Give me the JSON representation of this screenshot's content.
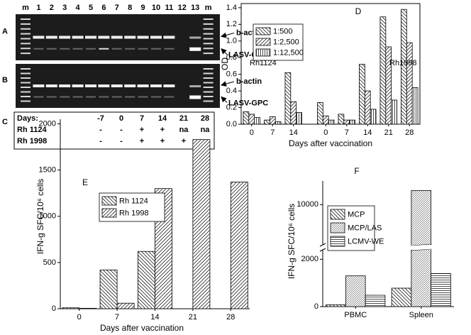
{
  "gels": {
    "lanes": [
      "m",
      "1",
      "2",
      "3",
      "4",
      "5",
      "6",
      "7",
      "8",
      "9",
      "10",
      "11",
      "12",
      "13",
      "m"
    ],
    "panels": [
      {
        "label": "A",
        "markers": [
          "b-actin",
          "LASV-GPC"
        ]
      },
      {
        "label": "B",
        "markers": [
          "b-actin",
          "LASV-GPC"
        ]
      }
    ]
  },
  "table": {
    "label": "C",
    "header": [
      "Days:",
      "-7",
      "0",
      "7",
      "14",
      "21",
      "28"
    ],
    "rows": [
      [
        "Rh 1124",
        "-",
        "-",
        "+",
        "+",
        "na",
        "na"
      ],
      [
        "Rh 1998",
        "-",
        "-",
        "+",
        "+",
        "+",
        "-"
      ]
    ]
  },
  "chart_data": [
    {
      "type": "bar",
      "panel_label": "D",
      "y_label": "OD",
      "x_label": "Days after vaccination",
      "categories": [
        "0",
        "7",
        "14",
        "0",
        "7",
        "14",
        "21",
        "28"
      ],
      "annotations": [
        "Rh1124",
        "Rh1998"
      ],
      "series": [
        {
          "name": "1:500",
          "color": "#000000",
          "hatch": "back-diagonal",
          "values": [
            0.15,
            0.05,
            0.62,
            0.26,
            0.12,
            0.72,
            1.29,
            1.38
          ]
        },
        {
          "name": "1:2,500",
          "color": "#000000",
          "hatch": "diagonal",
          "values": [
            0.12,
            0.09,
            0.27,
            0.1,
            0.05,
            0.4,
            0.93,
            0.98
          ]
        },
        {
          "name": "1:12,500",
          "color": "#000000",
          "hatch": "vertical",
          "values": [
            0.08,
            0.03,
            0.14,
            0.05,
            0.05,
            0.18,
            0.29,
            0.44
          ]
        }
      ],
      "ylim": [
        0,
        1.45
      ],
      "yticks": [
        {
          "value": 0,
          "label": "0.0"
        },
        0.2,
        0.4,
        0.6,
        0.8,
        {
          "value": 1,
          "label": "1.0"
        },
        1.2,
        1.4
      ],
      "legend": "upper-left"
    },
    {
      "type": "bar",
      "panel_label": "E",
      "y_label": "IFN-g SFC/10⁶ cells",
      "x_label": "Days after vaccination",
      "categories": [
        "0",
        "7",
        "14",
        "21",
        "28"
      ],
      "series": [
        {
          "name": "Rh 1124",
          "color": "#000000",
          "hatch": "back-diagonal",
          "values": [
            10,
            420,
            620,
            null,
            null
          ]
        },
        {
          "name": "Rh 1998",
          "color": "#000000",
          "hatch": "diagonal",
          "values": [
            5,
            60,
            1300,
            1830,
            1370
          ]
        }
      ],
      "ylim": [
        0,
        2050
      ],
      "yticks": [
        0,
        500,
        1000,
        1500,
        2000
      ],
      "legend": "upper-left"
    },
    {
      "type": "bar",
      "panel_label": "F",
      "y_label": "IFN-g SFC/10⁶ cells",
      "categories": [
        "PBMC",
        "Spleen"
      ],
      "series": [
        {
          "name": "MCP",
          "color": "#000000",
          "hatch": "back-diagonal",
          "values": [
            80,
            780
          ]
        },
        {
          "name": "MCP/LAS",
          "color": "#000000",
          "hatch": "dense-diagonal",
          "values": [
            1300,
            10600
          ]
        },
        {
          "name": "LCMV-WE",
          "color": "#000000",
          "hatch": "horizontal",
          "values": [
            480,
            1400
          ]
        }
      ],
      "ylim": [
        0,
        11000
      ],
      "ybreak": [
        2400,
        8300
      ],
      "yticks": [
        0,
        2000,
        10000
      ],
      "legend": "upper-left"
    }
  ]
}
